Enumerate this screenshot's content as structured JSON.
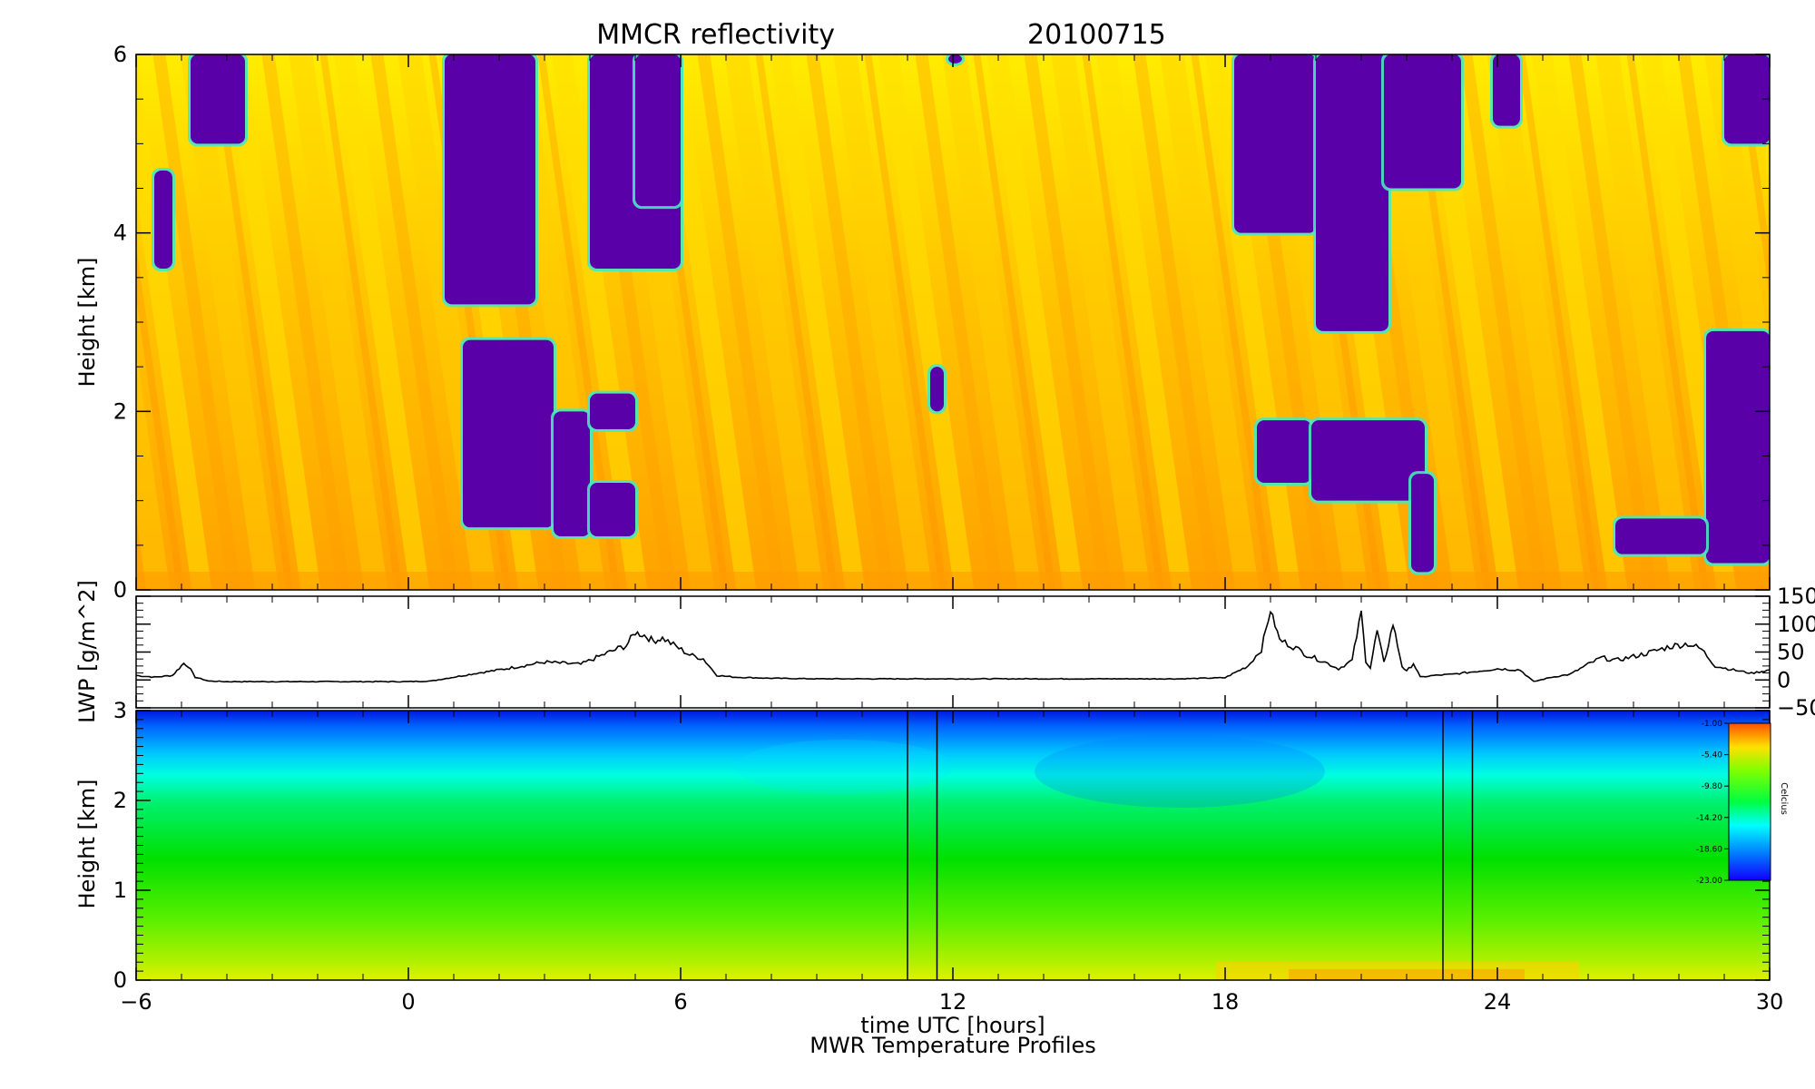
{
  "chart_data": [
    {
      "type": "heatmap",
      "title": "MMCR reflectivity",
      "date": "20100715",
      "ylabel": "Height [km]",
      "xlim": [
        -6,
        30
      ],
      "ylim": [
        0,
        6
      ],
      "xticks": [
        "−6",
        "0",
        "6",
        "12",
        "18",
        "24",
        "30"
      ],
      "yticks": [
        "0",
        "2",
        "4",
        "6"
      ],
      "colors": {
        "no_echo": "#5a00a8",
        "weak": "#c8f000",
        "moderate": "#ffff00",
        "strong": "#ffb000",
        "max": "#ff8a00",
        "edge": "#48e8c0"
      },
      "clear_regions": [
        {
          "x": [
            -4.8,
            -3.6
          ],
          "y": [
            5.0,
            6.0
          ]
        },
        {
          "x": [
            -5.6,
            -5.2
          ],
          "y": [
            3.6,
            4.7
          ]
        },
        {
          "x": [
            0.8,
            2.8
          ],
          "y": [
            3.2,
            6.0
          ]
        },
        {
          "x": [
            1.2,
            3.2
          ],
          "y": [
            0.7,
            2.8
          ]
        },
        {
          "x": [
            3.2,
            4.0
          ],
          "y": [
            0.6,
            2.0
          ]
        },
        {
          "x": [
            4.0,
            5.0
          ],
          "y": [
            1.8,
            2.2
          ]
        },
        {
          "x": [
            4.0,
            5.0
          ],
          "y": [
            0.6,
            1.2
          ]
        },
        {
          "x": [
            4.0,
            6.0
          ],
          "y": [
            3.6,
            6.0
          ]
        },
        {
          "x": [
            5.0,
            6.0
          ],
          "y": [
            4.3,
            6.0
          ]
        },
        {
          "x": [
            11.5,
            11.8
          ],
          "y": [
            2.0,
            2.5
          ]
        },
        {
          "x": [
            11.9,
            12.2
          ],
          "y": [
            5.9,
            6.0
          ]
        },
        {
          "x": [
            18.2,
            20.0
          ],
          "y": [
            4.0,
            6.0
          ]
        },
        {
          "x": [
            20.0,
            21.6
          ],
          "y": [
            2.9,
            6.0
          ]
        },
        {
          "x": [
            21.5,
            23.2
          ],
          "y": [
            4.5,
            6.0
          ]
        },
        {
          "x": [
            18.7,
            19.9
          ],
          "y": [
            1.2,
            1.9
          ]
        },
        {
          "x": [
            19.9,
            22.4
          ],
          "y": [
            1.0,
            1.9
          ]
        },
        {
          "x": [
            22.1,
            22.6
          ],
          "y": [
            0.2,
            1.3
          ]
        },
        {
          "x": [
            23.9,
            24.5
          ],
          "y": [
            5.2,
            6.0
          ]
        },
        {
          "x": [
            28.6,
            30.0
          ],
          "y": [
            0.3,
            2.9
          ]
        },
        {
          "x": [
            26.6,
            28.6
          ],
          "y": [
            0.4,
            0.8
          ]
        },
        {
          "x": [
            29.0,
            30.0
          ],
          "y": [
            5.0,
            6.0
          ]
        }
      ]
    },
    {
      "type": "line",
      "ylabel": "LWP [g/m^2]",
      "xlim": [
        -6,
        30
      ],
      "ylim": [
        -50,
        150
      ],
      "yticks": [
        "150",
        "100",
        "50",
        "0",
        "−50"
      ],
      "series": [
        {
          "x": [
            -6,
            -5.6,
            -5.2,
            -4.95,
            -4.85,
            -4.7,
            -4.4,
            -4,
            -3,
            -2,
            -1,
            0,
            0.5,
            1,
            1.5,
            2,
            2.5,
            3,
            3.4,
            3.8,
            4.2,
            4.5,
            4.8,
            5.0,
            5.2,
            5.4,
            5.6,
            5.9,
            6.2,
            6.5,
            6.8,
            7.2,
            8,
            9,
            10,
            11,
            12,
            13,
            14,
            15,
            16,
            17,
            18,
            18.5,
            18.8,
            19.0,
            19.2,
            19.5,
            19.8,
            20.2,
            20.5,
            20.8,
            21.0,
            21.1,
            21.2,
            21.35,
            21.5,
            21.7,
            21.9,
            22.0,
            22.15,
            22.3,
            22.6,
            23.0,
            23.5,
            24.0,
            24.5,
            24.8,
            25.2,
            25.6,
            26.0,
            26.3,
            26.6,
            27.0,
            27.4,
            27.8,
            28.2,
            28.5,
            28.8,
            29.2,
            29.6,
            30.0
          ],
          "y": [
            8,
            5,
            8,
            30,
            25,
            5,
            -2,
            -3,
            -3,
            -3,
            -3,
            -3,
            -2,
            5,
            12,
            18,
            25,
            32,
            30,
            28,
            42,
            52,
            62,
            85,
            80,
            70,
            75,
            60,
            45,
            38,
            8,
            5,
            3,
            2,
            2,
            2,
            2,
            2,
            2,
            2,
            2,
            2,
            4,
            25,
            55,
            125,
            72,
            60,
            45,
            32,
            20,
            35,
            122,
            35,
            22,
            88,
            30,
            100,
            25,
            15,
            30,
            5,
            8,
            10,
            15,
            20,
            18,
            -3,
            5,
            10,
            28,
            40,
            35,
            42,
            50,
            60,
            65,
            55,
            25,
            18,
            12,
            18
          ]
        }
      ]
    },
    {
      "type": "heatmap",
      "title": "MWR Temperature Profiles",
      "ylabel": "Height [km]",
      "xlabel": "time UTC [hours]",
      "xlim": [
        -6,
        30
      ],
      "ylim": [
        0,
        3
      ],
      "xticks": [
        "−6",
        "0",
        "6",
        "12",
        "18",
        "24",
        "30"
      ],
      "yticks": [
        "0",
        "1",
        "2",
        "3"
      ],
      "colorbar": {
        "label": "Celcius",
        "min": -23.0,
        "max": -1.0,
        "ticks": [
          "-1.00",
          "-5.40",
          "-9.80",
          "-14.20",
          "-18.60",
          "-23.00"
        ]
      },
      "vertical_markers": [
        11.0,
        11.65,
        22.8,
        23.45
      ]
    }
  ]
}
